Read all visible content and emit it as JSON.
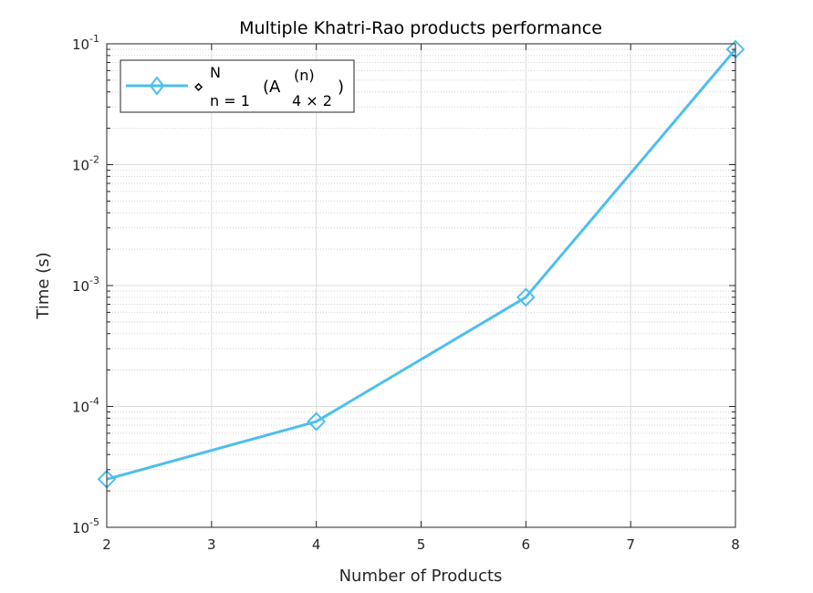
{
  "chart_data": {
    "type": "line",
    "title": "Multiple Khatri-Rao products performance",
    "xlabel": "Number of Products",
    "ylabel": "Time (s)",
    "xlim": [
      2,
      8
    ],
    "ylim": [
      1e-05,
      0.1
    ],
    "yscale": "log",
    "grid": true,
    "minor_grid": true,
    "legend_position": "top-left",
    "x_ticks": [
      2,
      3,
      4,
      5,
      6,
      7,
      8
    ],
    "y_ticks": [
      {
        "base": "10",
        "exp": "-5",
        "value": 1e-05
      },
      {
        "base": "10",
        "exp": "-4",
        "value": 0.0001
      },
      {
        "base": "10",
        "exp": "-3",
        "value": 0.001
      },
      {
        "base": "10",
        "exp": "-2",
        "value": 0.01
      },
      {
        "base": "10",
        "exp": "-1",
        "value": 0.1
      }
    ],
    "legend": {
      "symbol": "⋄",
      "sup": "N",
      "sub": "n = 1",
      "open": "(A",
      "mat_sup": "(n)",
      "mat_sub": "4 × 2",
      "close": ")"
    },
    "series": [
      {
        "x": [
          2,
          4,
          6,
          8
        ],
        "y": [
          2.5e-05,
          7.5e-05,
          0.0008,
          0.09
        ],
        "color": "#4DBEEE",
        "marker": "diamond"
      }
    ]
  }
}
